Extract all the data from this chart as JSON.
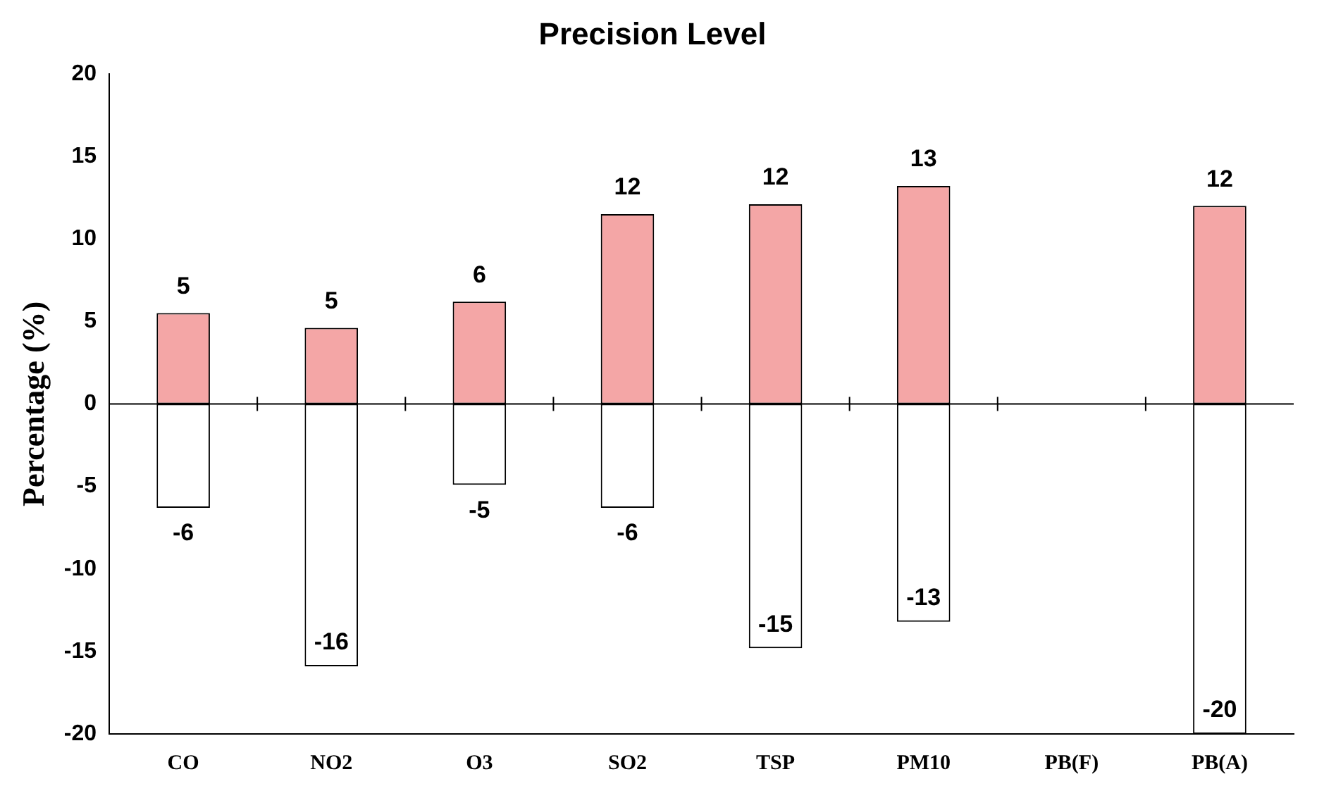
{
  "chart_data": {
    "type": "bar",
    "title": "Precision Level",
    "ylabel": "Percentage (%)",
    "categories": [
      "CO",
      "NO2",
      "O3",
      "SO2",
      "TSP",
      "PM10",
      "PB(F)",
      "PB(A)"
    ],
    "stacked": true,
    "series": [
      {
        "color": "#f4a6a6",
        "values": [
          5.5,
          4.6,
          6.2,
          11.5,
          12.1,
          13.2,
          null,
          12
        ],
        "value_labels": [
          "5",
          "5",
          "6",
          "12",
          "12",
          "13",
          null,
          "12"
        ]
      },
      {
        "color": "#ffffff",
        "values": [
          -6.3,
          -15.9,
          -4.9,
          -6.3,
          -14.8,
          -13.2,
          null,
          -20
        ],
        "value_labels": [
          "-6",
          "-16",
          "-5",
          "-6",
          "-15",
          "-13",
          null,
          "-20"
        ]
      }
    ],
    "ref_lines": [
      {
        "axis": "y",
        "value": 0,
        "color": "#000000"
      }
    ],
    "ylim": [
      -20,
      20
    ],
    "yticks": [
      -20,
      -15,
      -10,
      -5,
      0,
      5,
      10,
      15,
      20
    ],
    "grid": false,
    "legend": false
  }
}
